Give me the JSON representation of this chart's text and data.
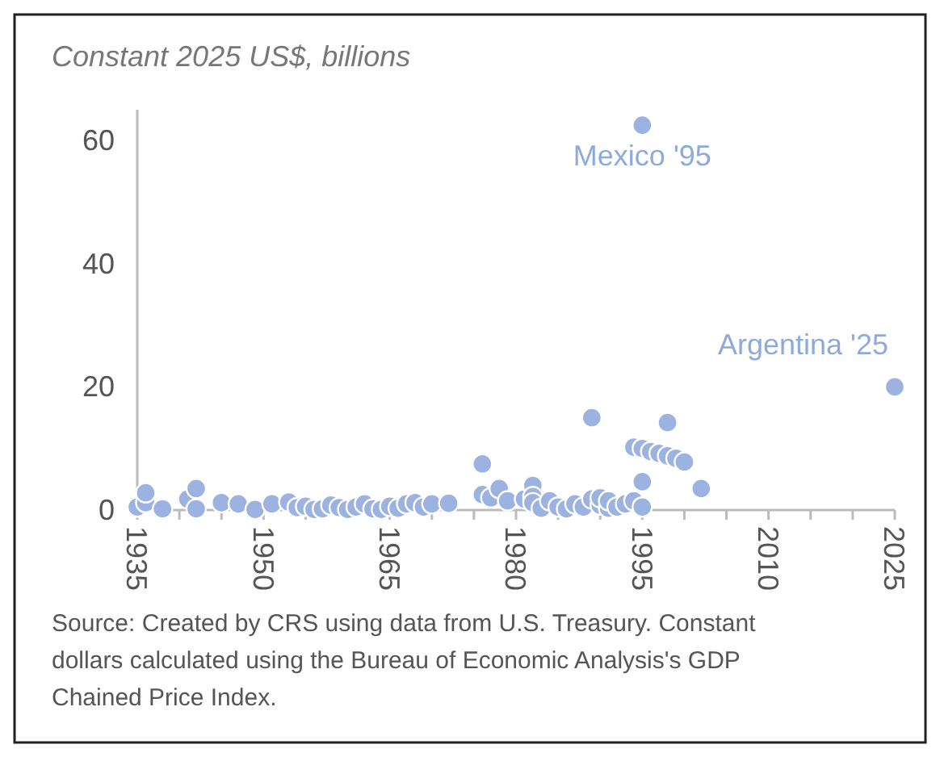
{
  "chart_data": {
    "type": "scatter",
    "ylabel": "Constant 2025 US$, billions",
    "x": [
      1935,
      1936,
      1936,
      1938,
      1941,
      1942,
      1942,
      1945,
      1947,
      1949,
      1951,
      1953,
      1954,
      1955,
      1956,
      1957,
      1958,
      1959,
      1960,
      1961,
      1962,
      1963,
      1964,
      1965,
      1966,
      1967,
      1968,
      1969,
      1970,
      1972,
      1976,
      1976,
      1977,
      1978,
      1979,
      1981,
      1982,
      1982,
      1982,
      1983,
      1984,
      1985,
      1986,
      1987,
      1988,
      1989,
      1989,
      1990,
      1990,
      1991,
      1991,
      1992,
      1993,
      1994,
      1994,
      1995,
      1995,
      1995,
      1995,
      1996,
      1997,
      1998,
      1998,
      1999,
      2000,
      2002,
      2025
    ],
    "values": [
      0.5,
      1.2,
      2.8,
      0.2,
      1.8,
      3.5,
      0.2,
      1.2,
      1.0,
      0.1,
      1.0,
      1.3,
      0.4,
      0.6,
      0.1,
      0.2,
      0.8,
      0.4,
      0.1,
      0.5,
      1.0,
      0.2,
      0.1,
      0.6,
      0.3,
      1.0,
      1.2,
      0.5,
      1.0,
      1.1,
      7.5,
      2.5,
      2.0,
      3.5,
      1.5,
      1.8,
      4.0,
      2.2,
      1.2,
      0.3,
      1.5,
      0.5,
      0.2,
      1.0,
      0.5,
      1.8,
      15,
      0.8,
      2.0,
      0.3,
      1.5,
      0.5,
      1.0,
      1.5,
      10.2,
      10,
      62.5,
      4.6,
      0.5,
      9.5,
      9.2,
      14.2,
      8.8,
      8.4,
      7.8,
      3.5,
      20
    ],
    "color": "#9cb3e2",
    "marker": "circle",
    "xlim": [
      1935,
      2025
    ],
    "xticks": [
      1935,
      1950,
      1965,
      1980,
      1995,
      2010,
      2025
    ],
    "ylim": [
      0,
      65
    ],
    "yticks": [
      0,
      20,
      40,
      60
    ],
    "grid": false,
    "annotations": [
      {
        "text": "Mexico '95",
        "x": 1995,
        "y": 62.5
      },
      {
        "text": "Argentina '25",
        "x": 2025,
        "y": 20
      },
      "Source: Created by CRS using data from U.S. Treasury. Constant dollars calculated using the Bureau of Economic Analysis's GDP Chained Price Index."
    ]
  }
}
